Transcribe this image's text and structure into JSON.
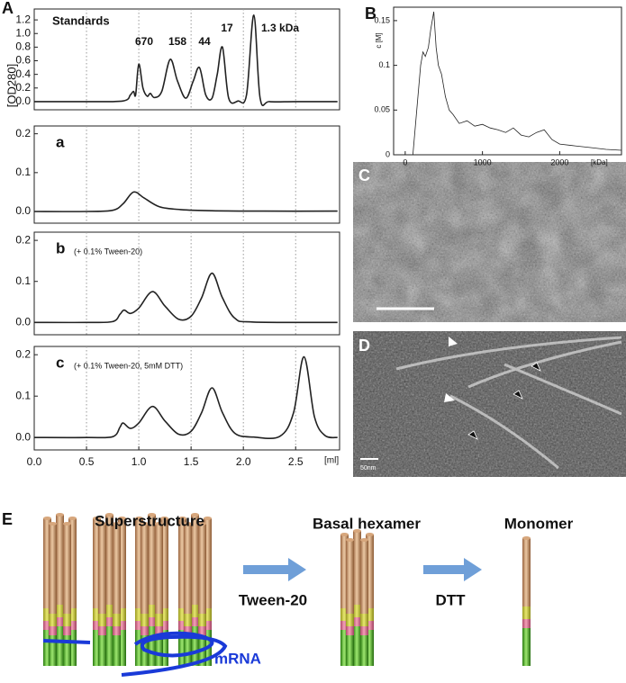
{
  "chart_data": [
    {
      "type": "line",
      "annotation": "Standards",
      "peak_labels": [
        "670",
        "158",
        "44",
        "17",
        "1.3  kDa"
      ],
      "ylabel": "[OD280]",
      "x": [
        0,
        0.5,
        0.85,
        0.92,
        0.95,
        0.97,
        1.0,
        1.04,
        1.08,
        1.11,
        1.15,
        1.22,
        1.3,
        1.37,
        1.45,
        1.52,
        1.58,
        1.64,
        1.7,
        1.75,
        1.8,
        1.86,
        1.95,
        2.03,
        2.1,
        2.16,
        2.25,
        2.5,
        2.9
      ],
      "values": [
        0,
        0,
        0.01,
        0.1,
        0.15,
        0.1,
        0.55,
        0.2,
        0.08,
        0.12,
        0.06,
        0.15,
        0.62,
        0.3,
        0.05,
        0.3,
        0.5,
        0.1,
        0.05,
        0.4,
        0.8,
        0.05,
        0.01,
        0.1,
        1.27,
        0.05,
        0,
        0,
        0
      ],
      "xlim": [
        0,
        2.92
      ],
      "ylim": [
        -0.12,
        1.36
      ],
      "yticks": [
        {
          "value": 0,
          "label": "0.0"
        },
        0.2,
        0.4,
        0.6,
        0.8,
        {
          "value": 1,
          "label": "1.0"
        },
        1.2
      ]
    },
    {
      "type": "line",
      "annotation": "a",
      "x": [
        0,
        0.5,
        0.75,
        0.85,
        0.95,
        1.05,
        1.2,
        1.4,
        1.7,
        2.2,
        2.9
      ],
      "values": [
        0,
        0,
        0.003,
        0.02,
        0.05,
        0.035,
        0.012,
        0.005,
        0.002,
        0.001,
        0.001
      ],
      "xlim": [
        0,
        2.92
      ],
      "ylim": [
        -0.03,
        0.22
      ],
      "yticks": [
        {
          "value": 0,
          "label": "0.0"
        },
        0.1,
        0.2
      ]
    },
    {
      "type": "line",
      "annotation": "b",
      "note": "(+ 0.1%  Tween-20)",
      "x": [
        0,
        0.5,
        0.75,
        0.82,
        0.86,
        0.92,
        1.0,
        1.13,
        1.25,
        1.38,
        1.5,
        1.6,
        1.7,
        1.8,
        1.92,
        2.1,
        2.9
      ],
      "values": [
        0,
        0,
        0.002,
        0.02,
        0.03,
        0.022,
        0.035,
        0.075,
        0.04,
        0.008,
        0.015,
        0.06,
        0.12,
        0.06,
        0.01,
        0.001,
        0
      ],
      "xlim": [
        0,
        2.92
      ],
      "ylim": [
        -0.03,
        0.22
      ],
      "yticks": [
        {
          "value": 0,
          "label": "0.0"
        },
        0.1,
        0.2
      ]
    },
    {
      "type": "line",
      "annotation": "c",
      "note": "(+ 0.1%  Tween-20,     5mM  DTT)",
      "xlabel": "[ml]",
      "x": [
        0,
        0.5,
        0.75,
        0.82,
        0.85,
        0.92,
        1.0,
        1.13,
        1.25,
        1.38,
        1.5,
        1.6,
        1.7,
        1.8,
        1.92,
        2.1,
        2.35,
        2.48,
        2.58,
        2.68,
        2.78,
        2.9
      ],
      "values": [
        0,
        0,
        0.002,
        0.025,
        0.035,
        0.022,
        0.035,
        0.075,
        0.04,
        0.008,
        0.015,
        0.06,
        0.12,
        0.06,
        0.01,
        0.001,
        0.003,
        0.06,
        0.195,
        0.05,
        0.005,
        0
      ],
      "xlim": [
        0,
        2.92
      ],
      "ylim": [
        -0.03,
        0.22
      ],
      "yticks": [
        {
          "value": 0,
          "label": "0.0"
        },
        0.1,
        0.2
      ],
      "xticks": [
        {
          "value": 0,
          "label": "0.0"
        },
        0.5,
        {
          "value": 1,
          "label": "1.0"
        },
        1.5,
        {
          "value": 2,
          "label": "2.0"
        },
        2.5
      ],
      "xgrid": true
    },
    {
      "type": "line",
      "ylabel": "c [M]",
      "xlabel": "[kDa]",
      "x": [
        100,
        150,
        200,
        230,
        260,
        300,
        330,
        370,
        400,
        430,
        470,
        520,
        570,
        620,
        700,
        800,
        900,
        1000,
        1100,
        1200,
        1300,
        1400,
        1500,
        1600,
        1700,
        1800,
        1900,
        2000,
        2200,
        2400,
        2600,
        2800
      ],
      "values": [
        0,
        0.05,
        0.1,
        0.115,
        0.11,
        0.12,
        0.14,
        0.16,
        0.12,
        0.1,
        0.09,
        0.065,
        0.05,
        0.045,
        0.035,
        0.038,
        0.032,
        0.034,
        0.03,
        0.028,
        0.025,
        0.03,
        0.022,
        0.02,
        0.025,
        0.028,
        0.017,
        0.012,
        0.01,
        0.008,
        0.006,
        0.005
      ],
      "xlim": [
        -150,
        2800
      ],
      "ylim": [
        0,
        0.165
      ],
      "xticks": [
        0,
        1000,
        2000
      ],
      "yticks": [
        0,
        0.05,
        0.1,
        0.15
      ]
    }
  ],
  "panels": [
    "A",
    "B",
    "C",
    "D",
    "E"
  ],
  "scale_label": "50nm",
  "diagram": {
    "stages": [
      "Superstructure",
      "Basal  hexamer",
      "Monomer"
    ],
    "arrows": [
      "Tween-20",
      "DTT"
    ],
    "rna": "mRNA"
  }
}
